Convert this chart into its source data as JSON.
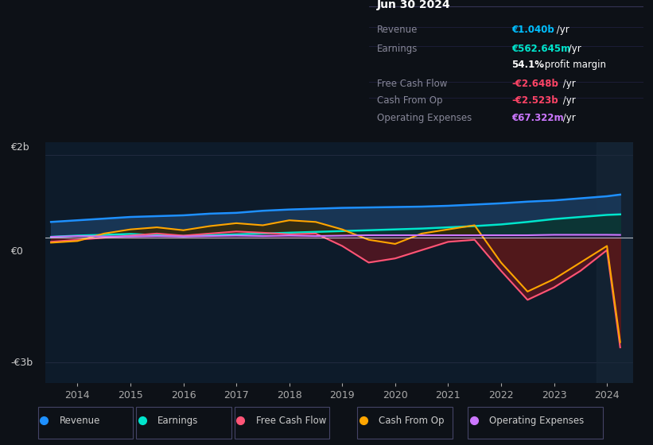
{
  "bg_color": "#0d1117",
  "plot_bg_color": "#0d1b2a",
  "title": "Jun 30 2024",
  "table": {
    "Revenue": {
      "value": "€1.040b /yr",
      "color": "#00bfff"
    },
    "Earnings": {
      "value": "€562.645m /yr",
      "color": "#00ffcc"
    },
    "profit_margin": {
      "value": "54.1%",
      "color": "#ffffff"
    },
    "Free Cash Flow": {
      "value": "-€2.648b /yr",
      "color": "#ff4466"
    },
    "Cash From Op": {
      "value": "-€2.523b /yr",
      "color": "#ff4466"
    },
    "Operating Expenses": {
      "value": "€67.322m /yr",
      "color": "#cc77ff"
    }
  },
  "yticks": [
    2000000000.0,
    0,
    -3000000000.0
  ],
  "ytick_labels": [
    "€2b",
    "€0",
    "-€3b"
  ],
  "xtick_labels": [
    "2014",
    "2015",
    "2016",
    "2017",
    "2018",
    "2019",
    "2020",
    "2021",
    "2022",
    "2023",
    "2024"
  ],
  "ylim": [
    -3500000000.0,
    2300000000.0
  ],
  "series": {
    "Revenue": {
      "color": "#1e90ff",
      "fill_color": "#1a4a6e",
      "lw": 1.8
    },
    "Earnings": {
      "color": "#00e5cc",
      "fill_color": "#0a3d3d",
      "lw": 1.8
    },
    "Free Cash Flow": {
      "color": "#ff5577",
      "fill_color": "#6b1a2a",
      "lw": 1.5
    },
    "Cash From Op": {
      "color": "#ffa500",
      "fill_color": "#4a3000",
      "lw": 1.5
    },
    "Operating Expenses": {
      "color": "#cc77ff",
      "fill_color": "#3a1a5a",
      "lw": 1.5
    }
  },
  "x_years": [
    2013.5,
    2014.0,
    2014.5,
    2015.0,
    2015.5,
    2016.0,
    2016.5,
    2017.0,
    2017.5,
    2018.0,
    2018.5,
    2019.0,
    2019.5,
    2020.0,
    2020.5,
    2021.0,
    2021.5,
    2022.0,
    2022.5,
    2023.0,
    2023.5,
    2024.0,
    2024.25
  ],
  "revenue": [
    380000000.0,
    420000000.0,
    460000000.0,
    500000000.0,
    520000000.0,
    540000000.0,
    580000000.0,
    600000000.0,
    650000000.0,
    680000000.0,
    700000000.0,
    720000000.0,
    730000000.0,
    740000000.0,
    750000000.0,
    770000000.0,
    800000000.0,
    830000000.0,
    870000000.0,
    900000000.0,
    950000000.0,
    1000000000.0,
    1040000000.0
  ],
  "earnings": [
    20000000.0,
    50000000.0,
    70000000.0,
    90000000.0,
    60000000.0,
    40000000.0,
    60000000.0,
    80000000.0,
    100000000.0,
    120000000.0,
    140000000.0,
    160000000.0,
    180000000.0,
    200000000.0,
    220000000.0,
    250000000.0,
    280000000.0,
    320000000.0,
    380000000.0,
    450000000.0,
    500000000.0,
    550000000.0,
    562600000.0
  ],
  "free_cash_flow": [
    -100000000.0,
    -50000000.0,
    0.0,
    50000000.0,
    100000000.0,
    50000000.0,
    100000000.0,
    150000000.0,
    120000000.0,
    80000000.0,
    100000000.0,
    -200000000.0,
    -600000000.0,
    -500000000.0,
    -300000000.0,
    -100000000.0,
    -50000000.0,
    -800000000.0,
    -1500000000.0,
    -1200000000.0,
    -800000000.0,
    -300000000.0,
    -2648000000.0
  ],
  "cash_from_op": [
    -120000000.0,
    -80000000.0,
    100000000.0,
    200000000.0,
    250000000.0,
    180000000.0,
    280000000.0,
    350000000.0,
    300000000.0,
    420000000.0,
    380000000.0,
    200000000.0,
    -50000000.0,
    -150000000.0,
    100000000.0,
    200000000.0,
    300000000.0,
    -600000000.0,
    -1300000000.0,
    -1000000000.0,
    -600000000.0,
    -200000000.0,
    -2523000000.0
  ],
  "op_expenses": [
    20000000.0,
    40000000.0,
    30000000.0,
    30000000.0,
    40000000.0,
    30000000.0,
    40000000.0,
    50000000.0,
    40000000.0,
    50000000.0,
    40000000.0,
    50000000.0,
    60000000.0,
    60000000.0,
    60000000.0,
    60000000.0,
    60000000.0,
    60000000.0,
    60000000.0,
    70000000.0,
    70000000.0,
    70000000.0,
    67300000.0
  ]
}
